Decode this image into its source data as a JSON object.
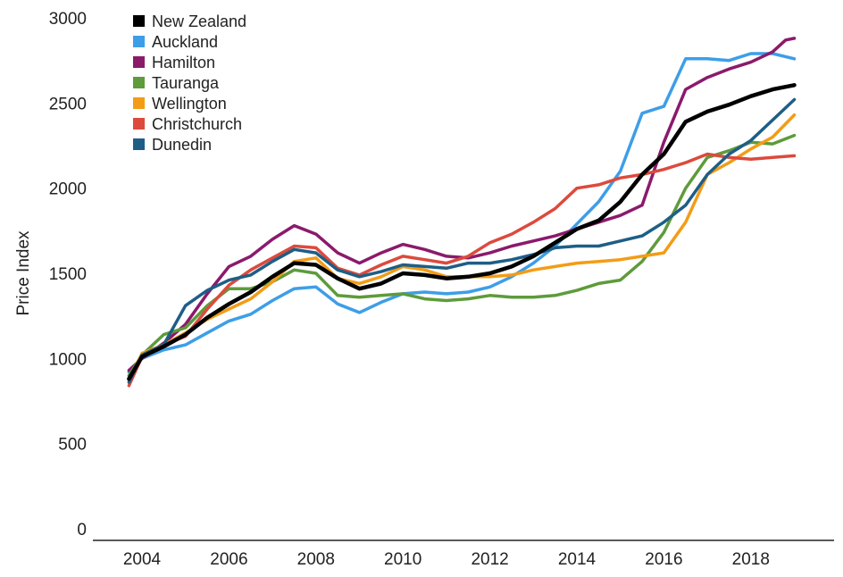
{
  "chart_data": {
    "type": "line",
    "title": "",
    "xlabel": "",
    "ylabel": "Price Index",
    "xlim": [
      2003.0,
      2019.7
    ],
    "ylim": [
      0,
      3000
    ],
    "xticks": [
      2004,
      2006,
      2008,
      2010,
      2012,
      2014,
      2016,
      2018
    ],
    "yticks": [
      0,
      500,
      1000,
      1500,
      2000,
      2500,
      3000
    ],
    "legend_position": "top-left",
    "series": [
      {
        "name": "New Zealand",
        "color": "#000000",
        "x": [
          2003.7,
          2004.0,
          2004.5,
          2005.0,
          2005.5,
          2006.0,
          2006.5,
          2007.0,
          2007.5,
          2008.0,
          2008.5,
          2009.0,
          2009.5,
          2010.0,
          2010.5,
          2011.0,
          2011.5,
          2012.0,
          2012.5,
          2013.0,
          2013.5,
          2014.0,
          2014.5,
          2015.0,
          2015.5,
          2016.0,
          2016.5,
          2017.0,
          2017.5,
          2018.0,
          2018.5,
          2019.0
        ],
        "y": [
          880,
          1010,
          1070,
          1140,
          1240,
          1320,
          1390,
          1480,
          1560,
          1550,
          1470,
          1410,
          1440,
          1500,
          1490,
          1470,
          1480,
          1500,
          1540,
          1600,
          1680,
          1760,
          1810,
          1920,
          2080,
          2200,
          2390,
          2450,
          2490,
          2540,
          2580,
          2605
        ]
      },
      {
        "name": "Auckland",
        "color": "#3d9ee8",
        "x": [
          2003.7,
          2004.0,
          2004.5,
          2005.0,
          2005.5,
          2006.0,
          2006.5,
          2007.0,
          2007.5,
          2008.0,
          2008.5,
          2009.0,
          2009.5,
          2010.0,
          2010.5,
          2011.0,
          2011.5,
          2012.0,
          2012.5,
          2013.0,
          2013.5,
          2014.0,
          2014.5,
          2015.0,
          2015.5,
          2016.0,
          2016.5,
          2017.0,
          2017.5,
          2018.0,
          2018.5,
          2019.0
        ],
        "y": [
          920,
          1000,
          1050,
          1080,
          1150,
          1220,
          1260,
          1340,
          1410,
          1420,
          1320,
          1270,
          1330,
          1380,
          1390,
          1380,
          1390,
          1420,
          1480,
          1560,
          1660,
          1790,
          1920,
          2100,
          2440,
          2480,
          2760,
          2760,
          2750,
          2790,
          2790,
          2760
        ]
      },
      {
        "name": "Hamilton",
        "color": "#8b1a6b",
        "x": [
          2003.7,
          2004.0,
          2004.5,
          2005.0,
          2005.5,
          2006.0,
          2006.5,
          2007.0,
          2007.5,
          2008.0,
          2008.5,
          2009.0,
          2009.5,
          2010.0,
          2010.5,
          2011.0,
          2011.5,
          2012.0,
          2012.5,
          2013.0,
          2013.5,
          2014.0,
          2014.5,
          2015.0,
          2015.5,
          2016.0,
          2016.5,
          2017.0,
          2017.5,
          2018.0,
          2018.5,
          2018.8,
          2019.0
        ],
        "y": [
          930,
          1000,
          1090,
          1200,
          1380,
          1540,
          1600,
          1700,
          1780,
          1730,
          1620,
          1560,
          1620,
          1670,
          1640,
          1600,
          1590,
          1620,
          1660,
          1690,
          1720,
          1760,
          1800,
          1840,
          1900,
          2270,
          2580,
          2650,
          2700,
          2740,
          2800,
          2870,
          2880
        ]
      },
      {
        "name": "Tauranga",
        "color": "#5e9b3b",
        "x": [
          2003.7,
          2004.0,
          2004.5,
          2005.0,
          2005.5,
          2006.0,
          2006.5,
          2007.0,
          2007.5,
          2008.0,
          2008.5,
          2009.0,
          2009.5,
          2010.0,
          2010.5,
          2011.0,
          2011.5,
          2012.0,
          2012.5,
          2013.0,
          2013.5,
          2014.0,
          2014.5,
          2015.0,
          2015.5,
          2016.0,
          2016.5,
          2017.0,
          2017.5,
          2018.0,
          2018.5,
          2019.0
        ],
        "y": [
          900,
          1020,
          1140,
          1180,
          1310,
          1410,
          1410,
          1450,
          1520,
          1500,
          1370,
          1360,
          1370,
          1380,
          1350,
          1340,
          1350,
          1370,
          1360,
          1360,
          1370,
          1400,
          1440,
          1460,
          1570,
          1740,
          2000,
          2180,
          2220,
          2270,
          2260,
          2310
        ]
      },
      {
        "name": "Wellington",
        "color": "#f39c16",
        "x": [
          2003.7,
          2004.0,
          2004.5,
          2005.0,
          2005.5,
          2006.0,
          2006.5,
          2007.0,
          2007.5,
          2008.0,
          2008.5,
          2009.0,
          2009.5,
          2010.0,
          2010.5,
          2011.0,
          2011.5,
          2012.0,
          2012.5,
          2013.0,
          2013.5,
          2014.0,
          2014.5,
          2015.0,
          2015.5,
          2016.0,
          2016.5,
          2017.0,
          2017.5,
          2018.0,
          2018.5,
          2019.0
        ],
        "y": [
          870,
          1030,
          1080,
          1150,
          1230,
          1290,
          1350,
          1450,
          1570,
          1590,
          1470,
          1440,
          1480,
          1540,
          1520,
          1480,
          1480,
          1480,
          1490,
          1520,
          1540,
          1560,
          1570,
          1580,
          1600,
          1620,
          1800,
          2080,
          2150,
          2230,
          2300,
          2430
        ]
      },
      {
        "name": "Christchurch",
        "color": "#dc4a3d",
        "x": [
          2003.7,
          2004.0,
          2004.5,
          2005.0,
          2005.5,
          2006.0,
          2006.5,
          2007.0,
          2007.5,
          2008.0,
          2008.5,
          2009.0,
          2009.5,
          2010.0,
          2010.5,
          2011.0,
          2011.5,
          2012.0,
          2012.5,
          2013.0,
          2013.5,
          2014.0,
          2014.5,
          2015.0,
          2015.5,
          2016.0,
          2016.5,
          2017.0,
          2017.5,
          2018.0,
          2018.5,
          2019.0
        ],
        "y": [
          840,
          1010,
          1080,
          1130,
          1290,
          1430,
          1520,
          1590,
          1660,
          1650,
          1530,
          1490,
          1550,
          1600,
          1580,
          1560,
          1600,
          1680,
          1730,
          1800,
          1880,
          2000,
          2020,
          2060,
          2080,
          2110,
          2150,
          2200,
          2180,
          2170,
          2180,
          2190
        ]
      },
      {
        "name": "Dunedin",
        "color": "#1e5e86",
        "x": [
          2003.7,
          2004.0,
          2004.5,
          2005.0,
          2005.5,
          2006.0,
          2006.5,
          2007.0,
          2007.5,
          2008.0,
          2008.5,
          2009.0,
          2009.5,
          2010.0,
          2010.5,
          2011.0,
          2011.5,
          2012.0,
          2012.5,
          2013.0,
          2013.5,
          2014.0,
          2014.5,
          2015.0,
          2015.5,
          2016.0,
          2016.5,
          2017.0,
          2017.5,
          2018.0,
          2018.5,
          2019.0
        ],
        "y": [
          860,
          1020,
          1080,
          1310,
          1400,
          1460,
          1490,
          1570,
          1640,
          1620,
          1520,
          1480,
          1510,
          1550,
          1540,
          1530,
          1560,
          1560,
          1580,
          1610,
          1650,
          1660,
          1660,
          1690,
          1720,
          1800,
          1900,
          2080,
          2200,
          2280,
          2400,
          2520
        ]
      }
    ]
  }
}
